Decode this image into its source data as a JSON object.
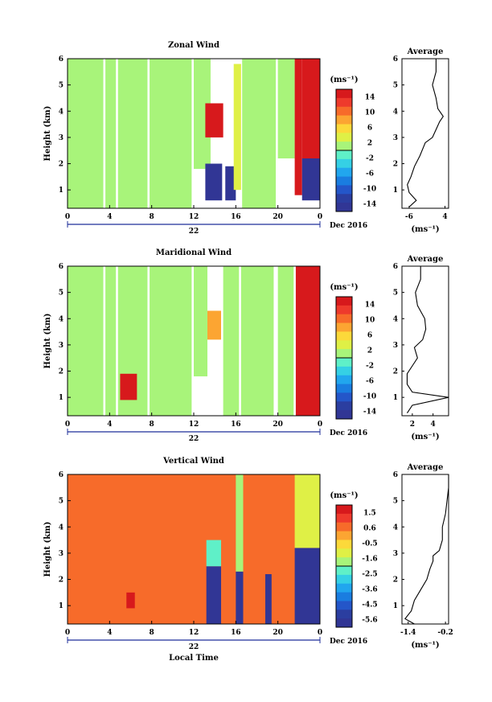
{
  "chart_data": [
    {
      "type": "heatmap",
      "title": "Zonal Wind",
      "xlabel": "",
      "ylabel": "Height (km)",
      "xlim": [
        0,
        24
      ],
      "ylim": [
        0.3,
        6
      ],
      "xticks": [
        "0",
        "4",
        "8",
        "12",
        "16",
        "20",
        "0"
      ],
      "yticks": [
        "1",
        "2",
        "3",
        "4",
        "5",
        "6"
      ],
      "date_day": "22",
      "date_label": "Dec 2016",
      "colorbar": {
        "unit": "(ms⁻¹)",
        "ticks": [
          "14",
          "10",
          "6",
          "2",
          "-2",
          "-6",
          "-10",
          "-14"
        ],
        "range": [
          -16,
          16
        ]
      },
      "profile": {
        "title": "Average",
        "xlabel": "(ms⁻¹)",
        "xticks": [
          "-6",
          "4"
        ],
        "xlim": [
          -8,
          5
        ],
        "points": [
          [
            -6,
            0.35
          ],
          [
            -4,
            0.6
          ],
          [
            -6,
            0.9
          ],
          [
            -6.5,
            1.2
          ],
          [
            -5.5,
            1.5
          ],
          [
            -4.5,
            1.9
          ],
          [
            -3,
            2.3
          ],
          [
            -1.5,
            2.8
          ],
          [
            0.5,
            3.0
          ],
          [
            1.5,
            3.3
          ],
          [
            2.5,
            3.6
          ],
          [
            3.5,
            3.8
          ],
          [
            2,
            4.1
          ],
          [
            1.5,
            4.5
          ],
          [
            0.5,
            5.0
          ],
          [
            1.5,
            5.5
          ],
          [
            1.5,
            6.0
          ]
        ]
      },
      "segments": [
        {
          "x": [
            0,
            3.4
          ],
          "y": [
            0.3,
            6
          ],
          "v": 0
        },
        {
          "x": [
            3.6,
            4.6
          ],
          "y": [
            0.3,
            6
          ],
          "v": 0
        },
        {
          "x": [
            4.8,
            7.6
          ],
          "y": [
            0.3,
            6
          ],
          "v": 0
        },
        {
          "x": [
            7.8,
            11.8
          ],
          "y": [
            0.3,
            6
          ],
          "v": 0
        },
        {
          "x": [
            12.0,
            13.6
          ],
          "y": [
            1.8,
            6
          ],
          "v": 0
        },
        {
          "x": [
            13.1,
            14.8
          ],
          "y": [
            3.0,
            4.3
          ],
          "v": 16
        },
        {
          "x": [
            13.1,
            14.7
          ],
          "y": [
            0.6,
            2.0
          ],
          "v": -16
        },
        {
          "x": [
            15.0,
            16.0
          ],
          "y": [
            0.6,
            1.9
          ],
          "v": -16
        },
        {
          "x": [
            15.8,
            16.5
          ],
          "y": [
            1.0,
            5.8
          ],
          "v": 4
        },
        {
          "x": [
            16.6,
            19.8
          ],
          "y": [
            0.3,
            6
          ],
          "v": 0
        },
        {
          "x": [
            20.0,
            21.6
          ],
          "y": [
            2.2,
            6
          ],
          "v": 0
        },
        {
          "x": [
            21.6,
            22.3
          ],
          "y": [
            0.8,
            6
          ],
          "v": 16
        },
        {
          "x": [
            22.3,
            24.0
          ],
          "y": [
            2.2,
            6
          ],
          "v": 16
        },
        {
          "x": [
            22.3,
            24.0
          ],
          "y": [
            0.6,
            2.2
          ],
          "v": -16
        }
      ]
    },
    {
      "type": "heatmap",
      "title": "Maridional Wind",
      "xlabel": "",
      "ylabel": "Height (km)",
      "xlim": [
        0,
        24
      ],
      "ylim": [
        0.3,
        6
      ],
      "xticks": [
        "0",
        "4",
        "8",
        "12",
        "16",
        "20",
        "0"
      ],
      "yticks": [
        "1",
        "2",
        "3",
        "4",
        "5",
        "6"
      ],
      "date_day": "22",
      "date_label": "Dec 2016",
      "colorbar": {
        "unit": "(ms⁻¹)",
        "ticks": [
          "14",
          "10",
          "6",
          "2",
          "-2",
          "-6",
          "-10",
          "-14"
        ],
        "range": [
          -16,
          16
        ]
      },
      "profile": {
        "title": "Average",
        "xlabel": "(ms⁻¹)",
        "xticks": [
          "2",
          "4"
        ],
        "xlim": [
          1,
          5.5
        ],
        "points": [
          [
            1.5,
            0.4
          ],
          [
            2,
            0.7
          ],
          [
            5.5,
            1.0
          ],
          [
            2,
            1.2
          ],
          [
            1.5,
            1.5
          ],
          [
            1.5,
            1.9
          ],
          [
            2,
            2.2
          ],
          [
            2.5,
            2.5
          ],
          [
            2.2,
            2.9
          ],
          [
            3,
            3.2
          ],
          [
            3.3,
            3.6
          ],
          [
            3.2,
            4.0
          ],
          [
            2.5,
            4.5
          ],
          [
            2.3,
            5.0
          ],
          [
            2.8,
            5.5
          ],
          [
            2.8,
            6.0
          ]
        ]
      },
      "segments": [
        {
          "x": [
            0,
            3.4
          ],
          "y": [
            0.3,
            6
          ],
          "v": 0
        },
        {
          "x": [
            3.6,
            4.6
          ],
          "y": [
            0.3,
            6
          ],
          "v": 0
        },
        {
          "x": [
            4.8,
            7.6
          ],
          "y": [
            0.3,
            6
          ],
          "v": 0
        },
        {
          "x": [
            7.8,
            11.8
          ],
          "y": [
            0.3,
            6
          ],
          "v": 0
        },
        {
          "x": [
            5.0,
            6.6
          ],
          "y": [
            0.9,
            1.9
          ],
          "v": 16
        },
        {
          "x": [
            12.0,
            13.3
          ],
          "y": [
            1.8,
            6
          ],
          "v": 0
        },
        {
          "x": [
            13.3,
            14.6
          ],
          "y": [
            3.2,
            4.3
          ],
          "v": 8
        },
        {
          "x": [
            14.8,
            16.3
          ],
          "y": [
            0.3,
            6
          ],
          "v": 0
        },
        {
          "x": [
            16.5,
            19.6
          ],
          "y": [
            0.3,
            6
          ],
          "v": 0
        },
        {
          "x": [
            20.0,
            21.5
          ],
          "y": [
            0.3,
            6
          ],
          "v": 0
        },
        {
          "x": [
            21.7,
            24.0
          ],
          "y": [
            0.3,
            6
          ],
          "v": 16
        }
      ]
    },
    {
      "type": "heatmap",
      "title": "Vertical Wind",
      "xlabel": "Local Time",
      "ylabel": "Height (km)",
      "xlim": [
        0,
        24
      ],
      "ylim": [
        0.3,
        6
      ],
      "xticks": [
        "0",
        "4",
        "8",
        "12",
        "16",
        "20",
        "0"
      ],
      "yticks": [
        "1",
        "2",
        "3",
        "4",
        "5",
        "6"
      ],
      "date_day": "22",
      "date_label": "Dec 2016",
      "colorbar": {
        "unit": "(ms⁻¹)",
        "ticks": [
          "1.5",
          "0.6",
          "-0.5",
          "-1.6",
          "-2.5",
          "-3.6",
          "-4.5",
          "-5.6"
        ],
        "range": [
          -6,
          2
        ]
      },
      "profile": {
        "title": "Average",
        "xlabel": "(ms⁻¹)",
        "xticks": [
          "-1.4",
          "-0.2"
        ],
        "xlim": [
          -1.6,
          -0.1
        ],
        "points": [
          [
            -1.2,
            0.3
          ],
          [
            -1.5,
            0.5
          ],
          [
            -1.3,
            0.8
          ],
          [
            -1.2,
            1.2
          ],
          [
            -1.0,
            1.6
          ],
          [
            -0.8,
            2.0
          ],
          [
            -0.7,
            2.4
          ],
          [
            -0.6,
            2.7
          ],
          [
            -0.6,
            2.9
          ],
          [
            -0.4,
            3.1
          ],
          [
            -0.3,
            3.5
          ],
          [
            -0.3,
            4.0
          ],
          [
            -0.2,
            4.5
          ],
          [
            -0.15,
            5.0
          ],
          [
            -0.1,
            5.5
          ],
          [
            -0.1,
            6.0
          ]
        ]
      },
      "segments": [
        {
          "x": [
            0,
            24
          ],
          "y": [
            0.3,
            6
          ],
          "v": 0.3
        },
        {
          "x": [
            13.2,
            14.6
          ],
          "y": [
            0.3,
            2.5
          ],
          "v": -6
        },
        {
          "x": [
            13.2,
            14.6
          ],
          "y": [
            2.5,
            3.5
          ],
          "v": -2.5
        },
        {
          "x": [
            16.0,
            16.7
          ],
          "y": [
            0.3,
            2.3
          ],
          "v": -5.5
        },
        {
          "x": [
            16.0,
            16.7
          ],
          "y": [
            2.3,
            6
          ],
          "v": -1.5
        },
        {
          "x": [
            18.8,
            19.4
          ],
          "y": [
            0.3,
            2.2
          ],
          "v": -5.6
        },
        {
          "x": [
            21.6,
            24.0
          ],
          "y": [
            0.3,
            3.2
          ],
          "v": -5.6
        },
        {
          "x": [
            21.6,
            24.0
          ],
          "y": [
            3.2,
            6
          ],
          "v": -1.0
        },
        {
          "x": [
            5.6,
            6.4
          ],
          "y": [
            0.9,
            1.5
          ],
          "v": 1.5
        }
      ]
    }
  ]
}
